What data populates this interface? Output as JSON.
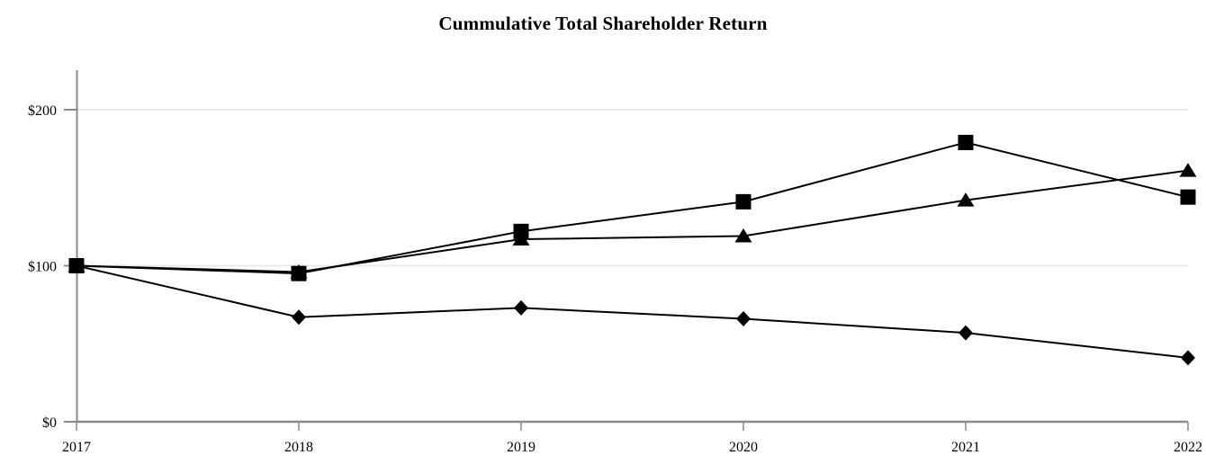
{
  "title": "Cummulative Total Shareholder Return",
  "chart_data": {
    "type": "line",
    "title": "Cummulative Total Shareholder Return",
    "x": [
      "2017",
      "2018",
      "2019",
      "2020",
      "2021",
      "2022"
    ],
    "xlabel": "",
    "ylabel": "",
    "ylim": [
      0,
      225
    ],
    "y_ticks": [
      {
        "label": "$0",
        "value": 0
      },
      {
        "label": "$100",
        "value": 100
      },
      {
        "label": "$200",
        "value": 200
      }
    ],
    "gridlines": {
      "horizontal_at": [
        100,
        200
      ],
      "vertical": false
    },
    "legend": {
      "visible": false
    },
    "series": [
      {
        "name": "diamond-series",
        "marker": "diamond",
        "color": "#000000",
        "values": [
          100,
          67,
          73,
          66,
          57,
          41
        ]
      },
      {
        "name": "triangle-series",
        "marker": "triangle",
        "color": "#000000",
        "values": [
          100,
          96,
          117,
          119,
          142,
          161
        ]
      },
      {
        "name": "square-series",
        "marker": "square",
        "color": "#000000",
        "values": [
          100,
          95,
          122,
          141,
          179,
          144
        ]
      }
    ],
    "colors": {
      "axis": "#8a8a8a",
      "gridline": "#eaeaea",
      "line": "#000000",
      "marker": "#000000",
      "text": "#000000"
    }
  }
}
